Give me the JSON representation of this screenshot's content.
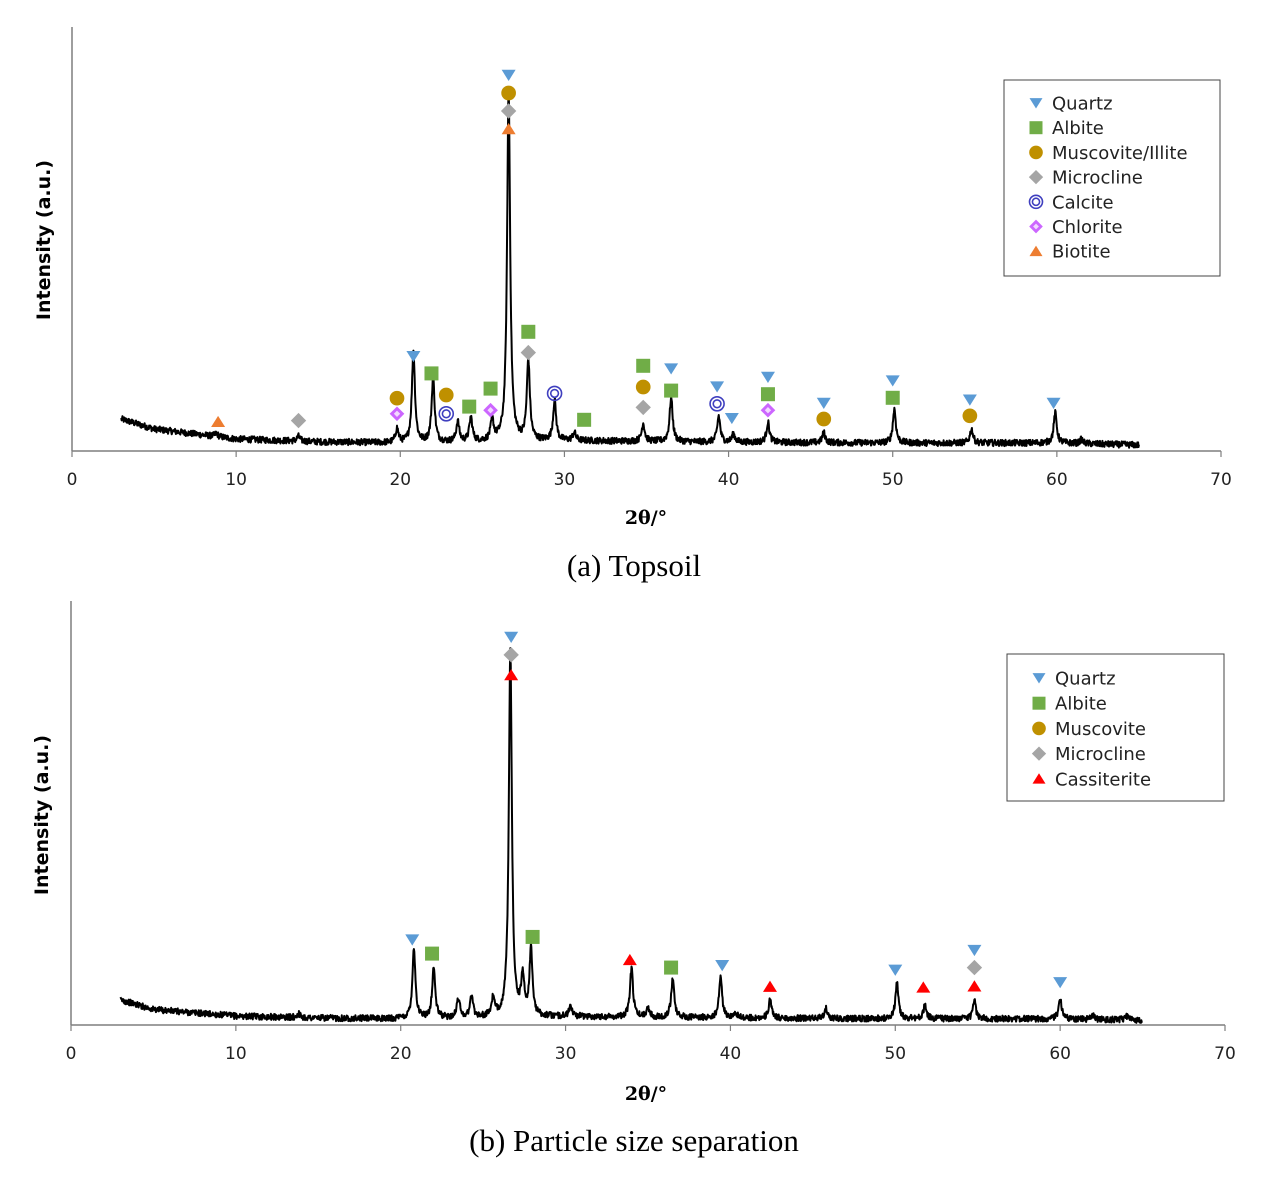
{
  "colors": {
    "Quartz": "#5b9bd5",
    "Albite": "#70ad47",
    "Muscovite": "#bf9000",
    "Microcline": "#a5a5a5",
    "Calcite": "#3f3fbf",
    "Chlorite": "#cc66ff",
    "Biotite": "#ed7d31",
    "Cassiterite": "#ff0000"
  },
  "chart_data": [
    {
      "type": "line",
      "caption": "(a) Topsoil",
      "xlabel": "2θ/°",
      "ylabel": "Intensity (a.u.)",
      "xlim": [
        0,
        70
      ],
      "xticks": [
        "0",
        "10",
        "20",
        "30",
        "40",
        "50",
        "60",
        "70"
      ],
      "ylim": [
        0,
        100
      ],
      "legend_position": "top-right",
      "legend": [
        {
          "label": "Quartz",
          "marker": "triangle-down",
          "color_key": "Quartz"
        },
        {
          "label": "Albite",
          "marker": "square",
          "color_key": "Albite"
        },
        {
          "label": "Muscovite/Illite",
          "marker": "circle",
          "color_key": "Muscovite"
        },
        {
          "label": "Microcline",
          "marker": "diamond",
          "color_key": "Microcline"
        },
        {
          "label": "Calcite",
          "marker": "ring",
          "color_key": "Calcite"
        },
        {
          "label": "Chlorite",
          "marker": "diamond-small",
          "color_key": "Chlorite"
        },
        {
          "label": "Biotite",
          "marker": "triangle-up",
          "color_key": "Biotite"
        }
      ],
      "pattern": {
        "x_range": [
          3,
          65
        ],
        "background": [
          [
            3,
            8
          ],
          [
            5,
            5.5
          ],
          [
            10,
            3
          ],
          [
            15,
            2.3
          ],
          [
            20,
            2
          ],
          [
            30,
            2.6
          ],
          [
            40,
            2.2
          ],
          [
            50,
            2
          ],
          [
            60,
            2
          ],
          [
            65,
            1.5
          ]
        ],
        "peaks": [
          [
            8.8,
            0.8
          ],
          [
            13.8,
            1.2
          ],
          [
            19.8,
            3.5
          ],
          [
            20.8,
            23
          ],
          [
            22.0,
            16
          ],
          [
            23.5,
            5
          ],
          [
            24.3,
            6
          ],
          [
            25.6,
            5
          ],
          [
            26.6,
            88
          ],
          [
            27.8,
            20
          ],
          [
            29.4,
            10
          ],
          [
            30.6,
            2
          ],
          [
            34.8,
            4.5
          ],
          [
            36.5,
            11
          ],
          [
            39.4,
            6.5
          ],
          [
            40.3,
            2
          ],
          [
            42.4,
            5
          ],
          [
            45.8,
            2.5
          ],
          [
            50.1,
            8.5
          ],
          [
            54.8,
            3.5
          ],
          [
            59.9,
            7.5
          ],
          [
            61.5,
            1
          ]
        ]
      },
      "markers": [
        {
          "x": 26.6,
          "y": 94,
          "phase": "Quartz"
        },
        {
          "x": 26.6,
          "y": 89.5,
          "phase": "Muscovite"
        },
        {
          "x": 26.6,
          "y": 85,
          "phase": "Microcline"
        },
        {
          "x": 26.6,
          "y": 80.5,
          "phase": "Biotite"
        },
        {
          "x": 8.9,
          "y": 7.3,
          "phase": "Biotite"
        },
        {
          "x": 13.8,
          "y": 7.6,
          "phase": "Microcline"
        },
        {
          "x": 19.8,
          "y": 13.2,
          "phase": "Muscovite"
        },
        {
          "x": 19.8,
          "y": 9.3,
          "phase": "Chlorite"
        },
        {
          "x": 20.8,
          "y": 23.7,
          "phase": "Quartz"
        },
        {
          "x": 21.9,
          "y": 19.4,
          "phase": "Albite"
        },
        {
          "x": 22.8,
          "y": 14.0,
          "phase": "Muscovite"
        },
        {
          "x": 22.8,
          "y": 9.3,
          "phase": "Calcite"
        },
        {
          "x": 24.2,
          "y": 11.1,
          "phase": "Albite"
        },
        {
          "x": 25.5,
          "y": 10.2,
          "phase": "Chlorite"
        },
        {
          "x": 25.5,
          "y": 15.6,
          "phase": "Albite"
        },
        {
          "x": 27.8,
          "y": 29.8,
          "phase": "Albite"
        },
        {
          "x": 27.8,
          "y": 24.6,
          "phase": "Microcline"
        },
        {
          "x": 29.4,
          "y": 14.4,
          "phase": "Calcite"
        },
        {
          "x": 31.2,
          "y": 7.8,
          "phase": "Albite"
        },
        {
          "x": 34.8,
          "y": 21.3,
          "phase": "Albite"
        },
        {
          "x": 34.8,
          "y": 16.0,
          "phase": "Muscovite"
        },
        {
          "x": 34.8,
          "y": 10.9,
          "phase": "Microcline"
        },
        {
          "x": 36.5,
          "y": 20.6,
          "phase": "Quartz"
        },
        {
          "x": 36.5,
          "y": 15.1,
          "phase": "Albite"
        },
        {
          "x": 39.3,
          "y": 16.1,
          "phase": "Quartz"
        },
        {
          "x": 39.3,
          "y": 11.8,
          "phase": "Calcite"
        },
        {
          "x": 40.2,
          "y": 8.2,
          "phase": "Quartz"
        },
        {
          "x": 42.4,
          "y": 18.5,
          "phase": "Quartz"
        },
        {
          "x": 42.4,
          "y": 14.2,
          "phase": "Albite"
        },
        {
          "x": 42.4,
          "y": 10.2,
          "phase": "Chlorite"
        },
        {
          "x": 45.8,
          "y": 12.0,
          "phase": "Quartz"
        },
        {
          "x": 45.8,
          "y": 8.0,
          "phase": "Muscovite"
        },
        {
          "x": 50.0,
          "y": 17.6,
          "phase": "Quartz"
        },
        {
          "x": 50.0,
          "y": 13.3,
          "phase": "Albite"
        },
        {
          "x": 54.7,
          "y": 12.8,
          "phase": "Quartz"
        },
        {
          "x": 54.7,
          "y": 8.8,
          "phase": "Muscovite"
        },
        {
          "x": 59.8,
          "y": 12.0,
          "phase": "Quartz"
        }
      ]
    },
    {
      "type": "line",
      "caption": "(b) Particle size separation",
      "xlabel": "2θ/°",
      "ylabel": "Intensity (a.u.)",
      "xlim": [
        0,
        70
      ],
      "xticks": [
        "0",
        "10",
        "20",
        "30",
        "40",
        "50",
        "60",
        "70"
      ],
      "ylim": [
        0,
        100
      ],
      "legend_position": "top-right",
      "legend": [
        {
          "label": "Quartz",
          "marker": "triangle-down",
          "color_key": "Quartz"
        },
        {
          "label": "Albite",
          "marker": "square",
          "color_key": "Albite"
        },
        {
          "label": "Muscovite",
          "marker": "circle",
          "color_key": "Muscovite"
        },
        {
          "label": "Microcline",
          "marker": "diamond",
          "color_key": "Microcline"
        },
        {
          "label": "Cassiterite",
          "marker": "triangle-up",
          "color_key": "Cassiterite"
        }
      ],
      "pattern": {
        "x_range": [
          3,
          65
        ],
        "background": [
          [
            3,
            6.5
          ],
          [
            5,
            4
          ],
          [
            10,
            2.3
          ],
          [
            15,
            1.8
          ],
          [
            20,
            1.6
          ],
          [
            30,
            2.2
          ],
          [
            40,
            1.8
          ],
          [
            50,
            1.6
          ],
          [
            60,
            1.6
          ],
          [
            65,
            1.2
          ]
        ],
        "peaks": [
          [
            13.8,
            1
          ],
          [
            20.8,
            18
          ],
          [
            22.0,
            13
          ],
          [
            23.5,
            5
          ],
          [
            24.3,
            5.5
          ],
          [
            25.6,
            4.5
          ],
          [
            26.65,
            94
          ],
          [
            27.4,
            10
          ],
          [
            27.9,
            17
          ],
          [
            30.3,
            2.5
          ],
          [
            34.0,
            12.5
          ],
          [
            35.0,
            2.5
          ],
          [
            36.5,
            10
          ],
          [
            39.4,
            10.5
          ],
          [
            40.3,
            1.5
          ],
          [
            42.4,
            4.5
          ],
          [
            45.8,
            2.5
          ],
          [
            50.1,
            9.5
          ],
          [
            51.8,
            3.5
          ],
          [
            54.8,
            4.5
          ],
          [
            60.0,
            5
          ],
          [
            62.0,
            1
          ],
          [
            64.0,
            1.2
          ]
        ]
      },
      "markers": [
        {
          "x": 26.7,
          "y": 100,
          "phase": "Quartz"
        },
        {
          "x": 26.7,
          "y": 95.4,
          "phase": "Microcline"
        },
        {
          "x": 26.7,
          "y": 90.2,
          "phase": "Cassiterite"
        },
        {
          "x": 20.7,
          "y": 22.0,
          "phase": "Quartz"
        },
        {
          "x": 21.9,
          "y": 18.4,
          "phase": "Albite"
        },
        {
          "x": 28.0,
          "y": 22.7,
          "phase": "Albite"
        },
        {
          "x": 33.9,
          "y": 16.8,
          "phase": "Cassiterite"
        },
        {
          "x": 36.4,
          "y": 14.8,
          "phase": "Albite"
        },
        {
          "x": 39.5,
          "y": 15.4,
          "phase": "Quartz"
        },
        {
          "x": 42.4,
          "y": 9.9,
          "phase": "Cassiterite"
        },
        {
          "x": 50.0,
          "y": 14.2,
          "phase": "Quartz"
        },
        {
          "x": 51.7,
          "y": 9.7,
          "phase": "Cassiterite"
        },
        {
          "x": 54.8,
          "y": 19.3,
          "phase": "Quartz"
        },
        {
          "x": 54.8,
          "y": 14.8,
          "phase": "Microcline"
        },
        {
          "x": 54.8,
          "y": 10.0,
          "phase": "Cassiterite"
        },
        {
          "x": 60.0,
          "y": 11.0,
          "phase": "Quartz"
        }
      ]
    }
  ]
}
